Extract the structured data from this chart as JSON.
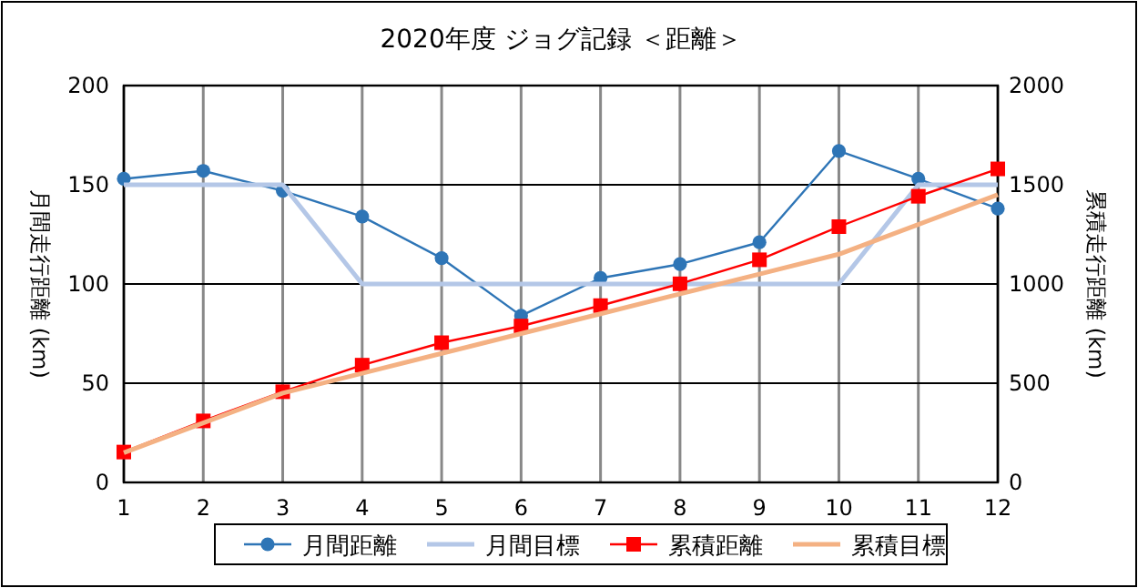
{
  "chart_data": {
    "type": "line",
    "title": "2020年度  ジョグ記録 ＜距離＞",
    "ylabel": "月間走行距離 (km)",
    "y2label": "累積走行距離 (km)",
    "x": [
      1,
      2,
      3,
      4,
      5,
      6,
      7,
      8,
      9,
      10,
      11,
      12
    ],
    "xlim": [
      1,
      12
    ],
    "xticks": [
      1,
      2,
      3,
      4,
      5,
      6,
      7,
      8,
      9,
      10,
      11,
      12
    ],
    "ylim": [
      0,
      200
    ],
    "yticks": [
      0,
      50,
      100,
      150,
      200
    ],
    "y2lim": [
      0,
      2000
    ],
    "y2ticks": [
      0,
      500,
      1000,
      1500,
      2000
    ],
    "grid": true,
    "legend": "bottom",
    "series": [
      {
        "name": "月間距離",
        "color": "#2e75b6",
        "marker": "circle",
        "values": [
          153,
          157,
          147,
          134,
          113,
          84,
          103,
          110,
          121,
          167,
          153,
          138
        ]
      },
      {
        "name": "月間目標",
        "color": "#b4c7e7",
        "marker": "none",
        "values": [
          150,
          150,
          150,
          100,
          100,
          100,
          100,
          100,
          100,
          100,
          150,
          150
        ]
      },
      {
        "name": "累積距離",
        "color": "#ff0000",
        "marker": "square",
        "axis": "y2",
        "values": [
          153,
          310,
          457,
          591,
          704,
          788,
          891,
          1001,
          1122,
          1289,
          1442,
          1580
        ]
      },
      {
        "name": "累積目標",
        "color": "#f4b183",
        "marker": "none",
        "axis": "y2",
        "values": [
          150,
          300,
          450,
          550,
          650,
          750,
          850,
          950,
          1050,
          1150,
          1300,
          1450
        ]
      }
    ]
  }
}
